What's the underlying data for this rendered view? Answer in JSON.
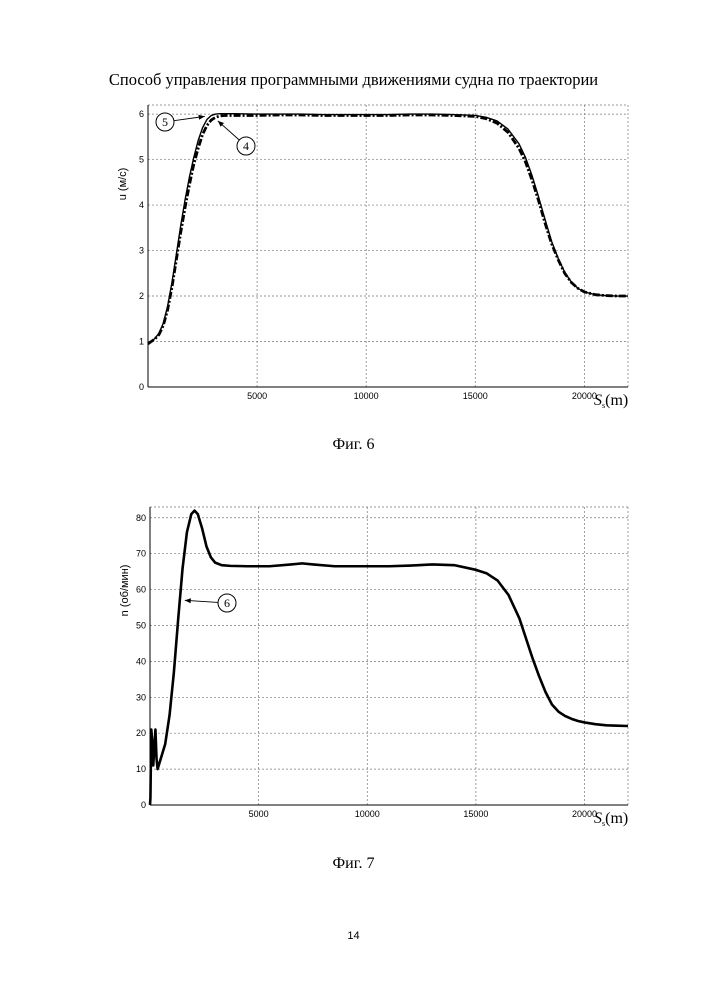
{
  "page": {
    "title": "Способ управления программными движениями судна по траектории",
    "page_number": "14"
  },
  "chart_data": [
    {
      "type": "line",
      "caption": "Фиг. 6",
      "xlabel": "S",
      "xlabel_sub": "s",
      "xlabel_unit": "(m)",
      "ylabel": "u (м/с)",
      "xlim": [
        0,
        22000
      ],
      "ylim": [
        0,
        6.2
      ],
      "xticks": [
        5000,
        10000,
        15000,
        20000
      ],
      "yticks": [
        0,
        1,
        2,
        3,
        4,
        5,
        6
      ],
      "grid": true,
      "annotations": [
        {
          "label": "5",
          "target_series": "5",
          "point": [
            2600,
            5.95
          ]
        },
        {
          "label": "4",
          "target_series": "4",
          "point": [
            3200,
            5.85
          ]
        }
      ],
      "series": [
        {
          "name": "4",
          "style": "dashdot",
          "color": "#000000",
          "x": [
            0,
            150,
            300,
            500,
            700,
            900,
            1100,
            1300,
            1500,
            1700,
            1900,
            2100,
            2300,
            2500,
            2700,
            2900,
            3100,
            3300,
            3500,
            4000,
            5000,
            6000,
            7000,
            8000,
            9000,
            10000,
            11000,
            12000,
            13000,
            14000,
            15000,
            15500,
            16000,
            16500,
            17000,
            17300,
            17600,
            17900,
            18200,
            18500,
            18800,
            19100,
            19400,
            19700,
            20000,
            20500,
            21000,
            21500,
            22000
          ],
          "values": [
            0.95,
            1.0,
            1.05,
            1.15,
            1.35,
            1.7,
            2.2,
            2.8,
            3.4,
            3.95,
            4.45,
            4.9,
            5.25,
            5.55,
            5.75,
            5.87,
            5.93,
            5.96,
            5.97,
            5.97,
            5.97,
            5.98,
            5.98,
            5.97,
            5.97,
            5.97,
            5.97,
            5.98,
            5.98,
            5.97,
            5.95,
            5.9,
            5.8,
            5.6,
            5.25,
            4.95,
            4.55,
            4.1,
            3.6,
            3.15,
            2.8,
            2.5,
            2.3,
            2.17,
            2.09,
            2.03,
            2.01,
            2.0,
            2.0
          ]
        },
        {
          "name": "5",
          "style": "solid",
          "color": "#000000",
          "x": [
            0,
            150,
            300,
            500,
            700,
            900,
            1100,
            1300,
            1500,
            1700,
            1900,
            2100,
            2300,
            2500,
            2700,
            2900,
            3100,
            3300,
            3500,
            4000,
            5000,
            6000,
            7000,
            8000,
            9000,
            10000,
            11000,
            12000,
            13000,
            14000,
            15000,
            15500,
            16000,
            16500,
            17000,
            17300,
            17600,
            17900,
            18200,
            18500,
            18800,
            19100,
            19400,
            19700,
            20000,
            20500,
            21000,
            21500,
            22000
          ],
          "values": [
            0.95,
            1.0,
            1.06,
            1.18,
            1.4,
            1.78,
            2.3,
            2.92,
            3.55,
            4.12,
            4.62,
            5.05,
            5.42,
            5.7,
            5.88,
            5.97,
            6.0,
            6.01,
            6.01,
            6.01,
            6.0,
            6.0,
            6.0,
            5.99,
            5.99,
            5.99,
            5.99,
            6.0,
            6.0,
            5.99,
            5.97,
            5.93,
            5.85,
            5.67,
            5.35,
            5.05,
            4.65,
            4.18,
            3.68,
            3.2,
            2.83,
            2.52,
            2.31,
            2.17,
            2.09,
            2.03,
            2.01,
            2.0,
            2.0
          ]
        }
      ]
    },
    {
      "type": "line",
      "caption": "Фиг. 7",
      "xlabel": "S",
      "xlabel_sub": "s",
      "xlabel_unit": "(m)",
      "ylabel": "n (об/мин)",
      "xlim": [
        0,
        22000
      ],
      "ylim": [
        0,
        83
      ],
      "xticks": [
        5000,
        10000,
        15000,
        20000
      ],
      "yticks": [
        0,
        10,
        20,
        30,
        40,
        50,
        60,
        70,
        80
      ],
      "grid": true,
      "annotations": [
        {
          "label": "6",
          "target_series": "6",
          "point": [
            1600,
            57
          ]
        }
      ],
      "series": [
        {
          "name": "6",
          "style": "solid",
          "color": "#000000",
          "x": [
            0,
            20,
            60,
            100,
            150,
            200,
            250,
            300,
            350,
            400,
            500,
            700,
            900,
            1100,
            1300,
            1500,
            1700,
            1900,
            2050,
            2200,
            2400,
            2600,
            2800,
            3000,
            3300,
            3700,
            4500,
            5500,
            6500,
            7000,
            7500,
            8500,
            10000,
            11000,
            12000,
            13000,
            14000,
            15000,
            15500,
            16000,
            16500,
            17000,
            17300,
            17600,
            17900,
            18200,
            18500,
            18800,
            19100,
            19400,
            19700,
            20000,
            20500,
            21000,
            21500,
            22000
          ],
          "values": [
            0,
            2,
            21,
            18,
            11,
            16,
            21,
            13,
            10,
            11,
            13,
            17,
            25,
            37,
            52,
            66,
            76,
            81,
            82,
            81,
            77,
            72,
            69,
            67.5,
            66.8,
            66.6,
            66.5,
            66.5,
            67,
            67.3,
            67,
            66.5,
            66.5,
            66.5,
            66.7,
            67,
            66.8,
            65.5,
            64.5,
            62.5,
            58.5,
            52,
            46.5,
            41,
            36,
            31.5,
            28,
            26,
            24.8,
            24,
            23.4,
            23,
            22.5,
            22.2,
            22.1,
            22
          ]
        }
      ]
    }
  ]
}
